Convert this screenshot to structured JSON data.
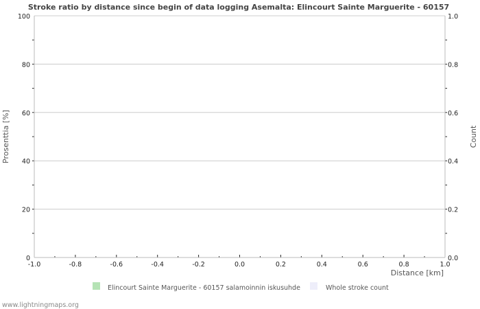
{
  "chart_data": {
    "type": "bar",
    "title": "Stroke ratio by distance since begin of data logging Asemalta: Elincourt Sainte Marguerite - 60157",
    "xlabel": "Distance   [km]",
    "ylabel": "Prosenttia   [%]",
    "y2label": "Count",
    "xlim": [
      -1.0,
      1.0
    ],
    "ylim": [
      0,
      100
    ],
    "y2lim": [
      0.0,
      1.0
    ],
    "x_ticks": [
      "-1.0",
      "-0.8",
      "-0.6",
      "-0.4",
      "-0.2",
      "0.0",
      "0.2",
      "0.4",
      "0.6",
      "0.8",
      "1.0"
    ],
    "y_ticks": [
      "0",
      "20",
      "40",
      "60",
      "80",
      "100"
    ],
    "y2_ticks": [
      "0.0",
      "0.2",
      "0.4",
      "0.6",
      "0.8",
      "1.0"
    ],
    "grid": true,
    "legend_placement": "bottom",
    "series": [
      {
        "name": "Elincourt Sainte Marguerite - 60157 salamoinnin iskusuhde",
        "color": "#b5e3b5",
        "values": []
      },
      {
        "name": "Whole stroke count",
        "color": "#eeeefa",
        "values": []
      }
    ]
  },
  "footer": "www.lightningmaps.org"
}
